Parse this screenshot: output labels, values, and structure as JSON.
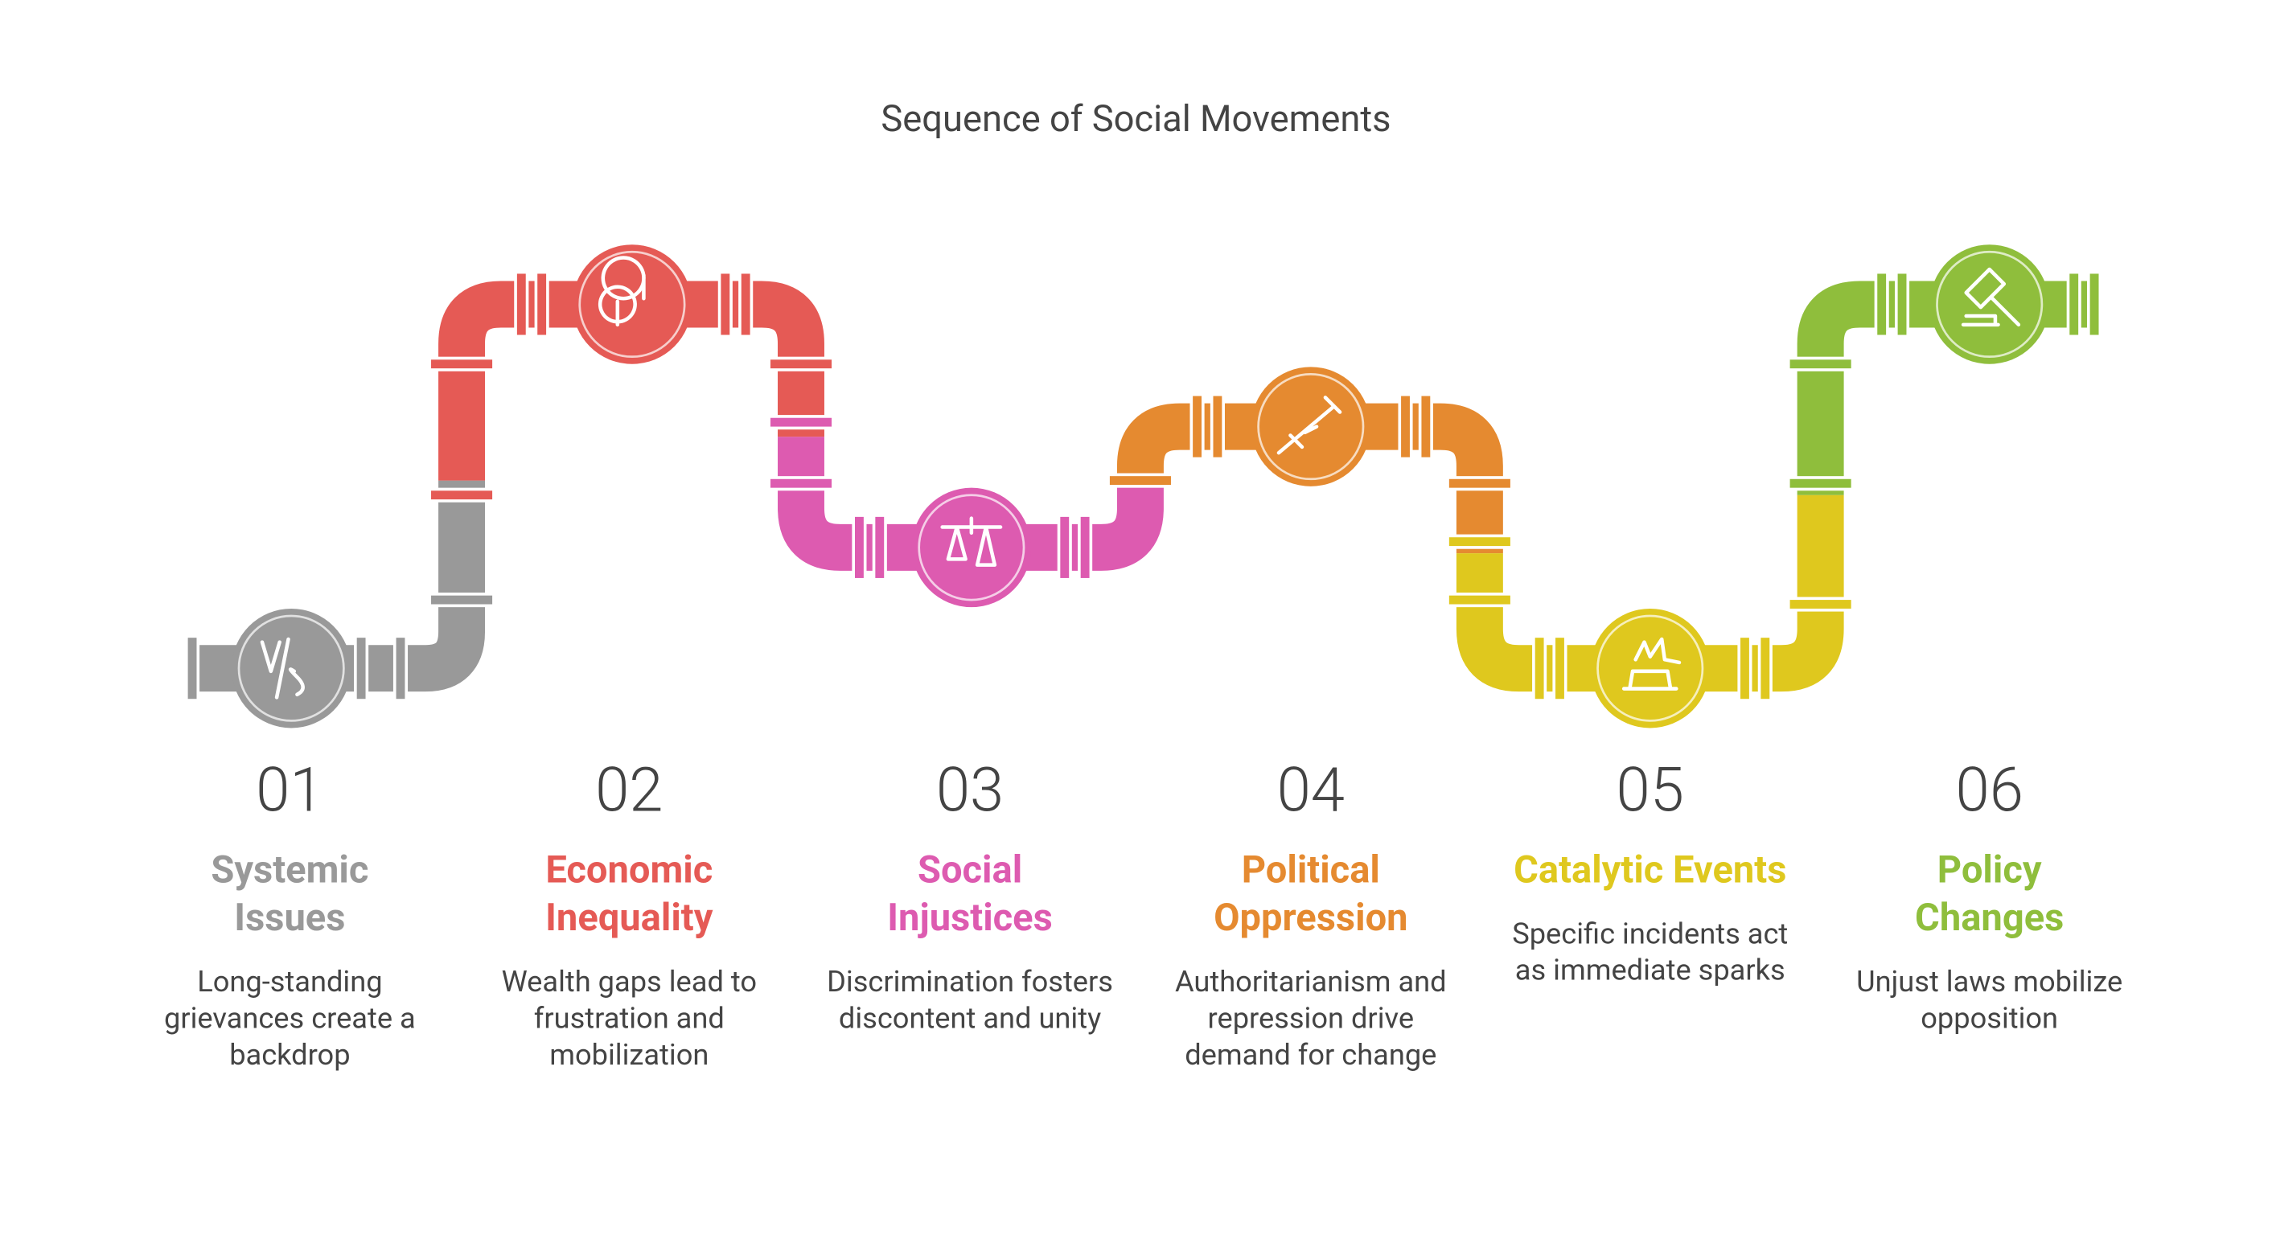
{
  "title": "Sequence of Social Movements",
  "steps": [
    {
      "number": "01",
      "title": "Systemic Issues",
      "description": "Long-standing grievances create a backdrop"
    },
    {
      "number": "02",
      "title": "Economic Inequality",
      "description": "Wealth gaps lead to frustration and mobilization"
    },
    {
      "number": "03",
      "title": "Social Injustices",
      "description": "Discrimination fosters discontent and unity"
    },
    {
      "number": "04",
      "title": "Political Oppression",
      "description": "Authoritarianism and repression drive demand for change"
    },
    {
      "number": "05",
      "title": "Catalytic Events",
      "description": "Specific incidents act as immediate sparks"
    },
    {
      "number": "06",
      "title": "Policy Changes",
      "description": "Unjust laws mobilize opposition"
    }
  ]
}
